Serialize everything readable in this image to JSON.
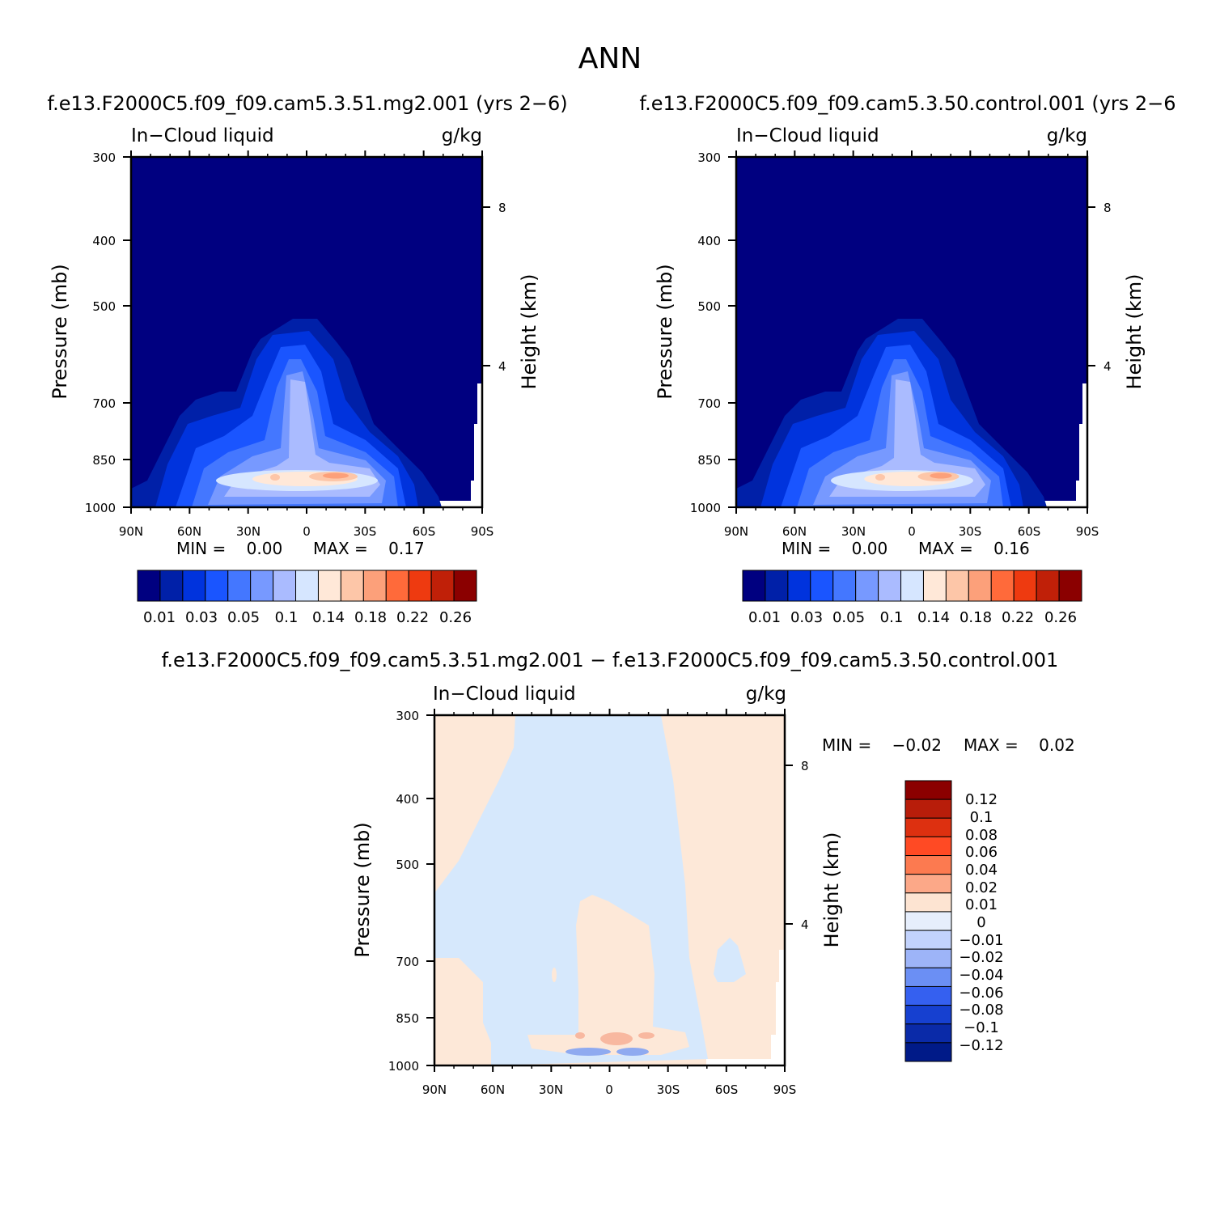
{
  "figure_title": "ANN",
  "chart_data": [
    {
      "id": "test",
      "type": "contour",
      "title": "f.e13.F2000C5.f09_f09.cam5.3.51.mg2.001 (yrs 2-6)",
      "title_display": "f.e13.F2000C5.f09_f09.cam5.3.51.mg2.001  (yrs 2−6)",
      "left_label": "In−Cloud liquid",
      "right_label": "g/kg",
      "ylabel": "Pressure (mb)",
      "y2label": "Height (km)",
      "x_ticks": [
        "90N",
        "60N",
        "30N",
        "0",
        "30S",
        "60S",
        "90S"
      ],
      "y_ticks": [
        "300",
        "400",
        "500",
        "700",
        "850",
        "1000"
      ],
      "y2_ticks": [
        "8",
        "4"
      ],
      "min_text": "MIN =    0.00",
      "max_text": "MAX =    0.17",
      "min": 0.0,
      "max": 0.17,
      "colorbar_labels": [
        "0.01",
        "0.03",
        "0.05",
        "0.1",
        "0.14",
        "0.18",
        "0.22",
        "0.26"
      ],
      "levels": [
        0.005,
        0.01,
        0.02,
        0.03,
        0.04,
        0.05,
        0.07,
        0.1,
        0.12,
        0.14,
        0.16,
        0.18,
        0.2,
        0.22,
        0.24,
        0.26
      ]
    },
    {
      "id": "control",
      "type": "contour",
      "title": "f.e13.F2000C5.f09_f09.cam5.3.50.control.001 (yrs 2-6)",
      "title_display": "f.e13.F2000C5.f09_f09.cam5.3.50.control.001  (yrs 2−6",
      "left_label": "In−Cloud liquid",
      "right_label": "g/kg",
      "ylabel": "Pressure (mb)",
      "y2label": "Height (km)",
      "x_ticks": [
        "90N",
        "60N",
        "30N",
        "0",
        "30S",
        "60S",
        "90S"
      ],
      "y_ticks": [
        "300",
        "400",
        "500",
        "700",
        "850",
        "1000"
      ],
      "y2_ticks": [
        "8",
        "4"
      ],
      "min_text": "MIN =    0.00",
      "max_text": "MAX =    0.16",
      "min": 0.0,
      "max": 0.16,
      "colorbar_labels": [
        "0.01",
        "0.03",
        "0.05",
        "0.1",
        "0.14",
        "0.18",
        "0.22",
        "0.26"
      ]
    },
    {
      "id": "diff",
      "type": "contour",
      "title": "f.e13.F2000C5.f09_f09.cam5.3.51.mg2.001 − f.e13.F2000C5.f09_f09.cam5.3.50.control.001",
      "left_label": "In−Cloud liquid",
      "right_label": "g/kg",
      "ylabel": "Pressure (mb)",
      "y2label": "Height (km)",
      "x_ticks": [
        "90N",
        "60N",
        "30N",
        "0",
        "30S",
        "60S",
        "90S"
      ],
      "y_ticks": [
        "300",
        "400",
        "500",
        "700",
        "850",
        "1000"
      ],
      "y2_ticks": [
        "8",
        "4"
      ],
      "min_text": "MIN =    −0.02",
      "max_text": "MAX =    0.02",
      "min": -0.02,
      "max": 0.02,
      "colorbar_labels": [
        "0.12",
        "0.1",
        "0.08",
        "0.06",
        "0.04",
        "0.02",
        "0.01",
        "0",
        "−0.01",
        "−0.02",
        "−0.04",
        "−0.06",
        "−0.08",
        "−0.1",
        "−0.12"
      ]
    }
  ],
  "colors": {
    "seq": [
      "#000080",
      "#0020a8",
      "#0033dd",
      "#1a55ff",
      "#4477ff",
      "#7799ff",
      "#aabbff",
      "#d6e6ff",
      "#ffe8d8",
      "#fdc6a8",
      "#fca07a",
      "#ff6a3a",
      "#ee3a10",
      "#c02008",
      "#8b0000"
    ],
    "diff_pos": "#fde8d8",
    "diff_neg": "#d6e8fc",
    "diff_mid_blue": "#8faaf0",
    "diff_warm": "#f8b8a0"
  }
}
